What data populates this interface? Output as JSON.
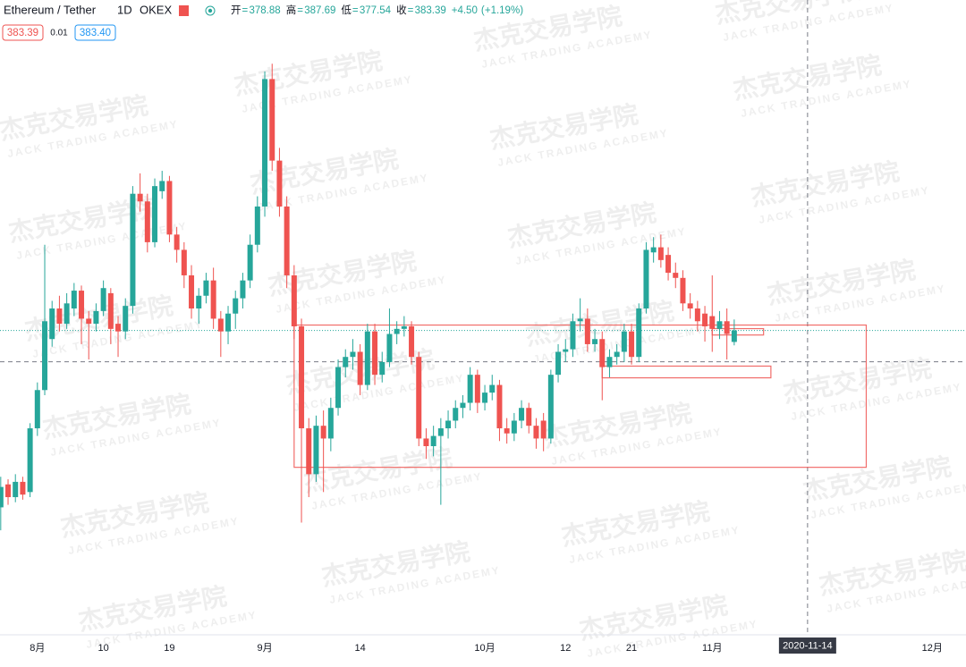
{
  "chart_data": {
    "type": "candlestick",
    "symbol": "Ethereum / Tether",
    "interval": "1D",
    "exchange": "OKEX",
    "ohlc_labels": [
      "开",
      "高",
      "低",
      "收"
    ],
    "change": {
      "value": 4.5,
      "label": "+4.50"
    },
    "change_percent": {
      "value": 1.19,
      "label": "+1.19%"
    },
    "spread": 0.01,
    "ask": {
      "value": 383.4,
      "label": "383.40"
    },
    "up_color": "#26a69a",
    "down_color": "#ef5350",
    "x": [
      0,
      1,
      2,
      3,
      4,
      5,
      6,
      7,
      8,
      9,
      10,
      11,
      12,
      13,
      14,
      15,
      16,
      17,
      18,
      19,
      20,
      21,
      22,
      23,
      24,
      25,
      26,
      27,
      28,
      29,
      30,
      31,
      32,
      33,
      34,
      35,
      36,
      37,
      38,
      39,
      40,
      41,
      42,
      43,
      44,
      45,
      46,
      47,
      48,
      49,
      50,
      51,
      52,
      53,
      54,
      55,
      56,
      57,
      58,
      59,
      60,
      61,
      62,
      63,
      64,
      65,
      66,
      67,
      68,
      69,
      70,
      71,
      72,
      73,
      74,
      75,
      76,
      77,
      78,
      79,
      80,
      81,
      82,
      83,
      84,
      85,
      86,
      87,
      88,
      89,
      90,
      91,
      92,
      93,
      94,
      95,
      96,
      97,
      98,
      99,
      100
    ],
    "open": [
      314,
      323,
      318,
      324,
      320,
      345,
      360,
      380,
      392,
      386,
      392,
      399,
      388,
      386,
      391,
      398,
      386,
      383,
      393,
      437,
      434,
      418,
      438,
      442,
      421,
      415,
      405,
      392,
      397,
      403,
      388,
      383,
      390,
      396,
      403,
      417,
      432,
      482,
      450,
      432,
      405,
      385,
      345,
      327,
      346,
      341,
      353,
      369,
      373,
      375,
      362,
      383,
      366,
      371,
      382,
      384,
      385,
      373,
      341,
      338,
      342,
      345,
      348,
      353,
      355,
      366,
      355,
      359,
      362,
      345,
      343,
      348,
      353,
      346,
      348,
      341,
      366,
      375,
      376,
      387,
      388,
      378,
      380,
      369,
      373,
      375,
      383,
      373,
      392,
      414,
      416,
      413,
      406,
      404,
      394,
      392,
      390,
      389,
      384,
      387,
      378.88
    ],
    "high": [
      326,
      325,
      327,
      326,
      347,
      363,
      417,
      395,
      397,
      398,
      402,
      401,
      391,
      394,
      403,
      400,
      389,
      396,
      440,
      445,
      437,
      443,
      446,
      444,
      424,
      418,
      409,
      400,
      406,
      408,
      391,
      393,
      399,
      406,
      421,
      436,
      485,
      488,
      455,
      436,
      409,
      388,
      349,
      350,
      352,
      357,
      372,
      376,
      380,
      378,
      386,
      386,
      375,
      392,
      387,
      389,
      387,
      375,
      345,
      346,
      349,
      352,
      356,
      358,
      369,
      368,
      362,
      366,
      364,
      349,
      351,
      356,
      355,
      349,
      351,
      368,
      378,
      380,
      390,
      396,
      392,
      384,
      383,
      376,
      378,
      386,
      386,
      394,
      418,
      420,
      421,
      416,
      410,
      407,
      398,
      395,
      393,
      405,
      391,
      392,
      387.69
    ],
    "low": [
      305,
      315,
      316,
      317,
      318,
      342,
      358,
      377,
      383,
      384,
      389,
      378,
      372,
      383,
      389,
      378,
      373,
      380,
      390,
      430,
      414,
      416,
      435,
      418,
      410,
      400,
      388,
      386,
      394,
      384,
      373,
      378,
      384,
      392,
      400,
      414,
      428,
      446,
      428,
      400,
      380,
      308,
      318,
      324,
      320,
      336,
      350,
      365,
      368,
      358,
      360,
      362,
      363,
      369,
      378,
      381,
      370,
      338,
      333,
      334,
      315,
      341,
      345,
      349,
      352,
      351,
      352,
      356,
      340,
      339,
      340,
      345,
      343,
      337,
      336,
      339,
      363,
      371,
      373,
      383,
      375,
      375,
      356,
      365,
      370,
      371,
      370,
      371,
      390,
      410,
      408,
      403,
      400,
      391,
      388,
      383,
      379,
      375,
      380,
      372,
      377.54
    ],
    "close": [
      322,
      318,
      324,
      319,
      345,
      360,
      387,
      392,
      386,
      394,
      399,
      388,
      386,
      391,
      400,
      384,
      383,
      393,
      437,
      434,
      418,
      440,
      442,
      421,
      415,
      405,
      392,
      397,
      403,
      388,
      383,
      390,
      396,
      403,
      417,
      432,
      482,
      450,
      432,
      405,
      385,
      345,
      327,
      346,
      341,
      353,
      369,
      373,
      375,
      362,
      383,
      366,
      371,
      382,
      384,
      385,
      373,
      341,
      338,
      342,
      345,
      348,
      353,
      355,
      366,
      355,
      359,
      362,
      345,
      343,
      348,
      353,
      346,
      341,
      341,
      366,
      375,
      376,
      387,
      388,
      378,
      380,
      369,
      373,
      375,
      383,
      373,
      392,
      415,
      416,
      411,
      406,
      404,
      394,
      392,
      387,
      385,
      384,
      387,
      382,
      383.39
    ],
    "xlim": [
      -0.1,
      131.6
    ],
    "ylim": [
      264,
      513
    ],
    "xticks": [
      {
        "value": 5,
        "label": "8月"
      },
      {
        "value": 14,
        "label": "10"
      },
      {
        "value": 23,
        "label": "19"
      },
      {
        "value": 36,
        "label": "9月"
      },
      {
        "value": 49,
        "label": "14"
      },
      {
        "value": 66,
        "label": "10月"
      },
      {
        "value": 77,
        "label": "12"
      },
      {
        "value": 86,
        "label": "21"
      },
      {
        "value": 97,
        "label": "11月"
      },
      {
        "value": 127,
        "label": "12月"
      }
    ],
    "rectangles": [
      {
        "x0": 40,
        "x1": 118,
        "top": 385.5,
        "bottom": 329.7
      },
      {
        "x0": 97,
        "x1": 104,
        "top": 384.1,
        "bottom": 381.6
      },
      {
        "x0": 82,
        "x1": 105,
        "top": 369.4,
        "bottom": 364.8
      }
    ],
    "crosshair": {
      "x": 110,
      "price": 371.1,
      "label": "2020-11-14"
    },
    "watermark": {
      "title": "杰克交易学院",
      "subtitle": "JACK TRADING ACADEMY"
    }
  }
}
